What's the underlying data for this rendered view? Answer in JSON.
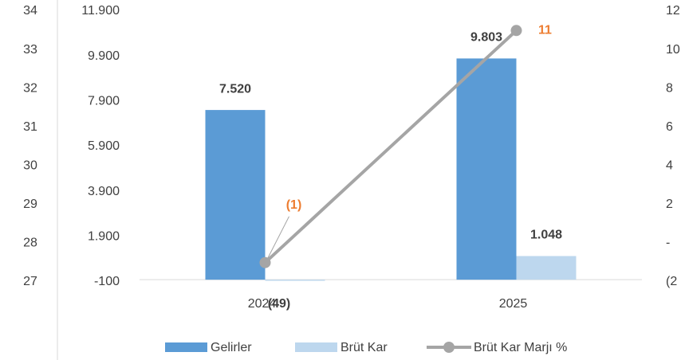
{
  "chart_data": {
    "type": "bar",
    "categories": [
      "2024",
      "2025"
    ],
    "series": [
      {
        "name": "Gelirler",
        "color": "#5b9bd5",
        "values": [
          7520,
          9803
        ],
        "value_labels": [
          "7.520",
          "9.803"
        ]
      },
      {
        "name": "Brüt Kar",
        "color": "#bdd7ee",
        "values": [
          -49,
          1048
        ],
        "value_labels": [
          "(49)",
          "1.048"
        ]
      },
      {
        "name": "Brüt Kar Marjı %",
        "type": "line",
        "axis": "y2",
        "color": "#a5a5a5",
        "label_color": "#ed7d31",
        "values": [
          -1,
          11
        ],
        "value_labels": [
          "(1)",
          "11"
        ]
      }
    ],
    "ylim": [
      -100,
      11900
    ],
    "yticks": [
      -100,
      {
        "value": 1900,
        "label": "1.900"
      },
      {
        "value": 3900,
        "label": "3.900"
      },
      {
        "value": 5900,
        "label": "5.900"
      },
      {
        "value": 7900,
        "label": "7.900"
      },
      {
        "value": 9900,
        "label": "9.900"
      },
      {
        "value": 11900,
        "label": "11.900"
      }
    ],
    "y2lim": [
      -2,
      12
    ],
    "y2ticks": [
      {
        "value": -2,
        "label": "(2"
      },
      {
        "value": 0,
        "label": "-"
      },
      2,
      4,
      6,
      8,
      10,
      12
    ],
    "y3lim": [
      27,
      34
    ],
    "y3ticks": [
      27,
      28,
      29,
      30,
      31,
      32,
      33,
      34
    ],
    "legend": "bottom"
  }
}
